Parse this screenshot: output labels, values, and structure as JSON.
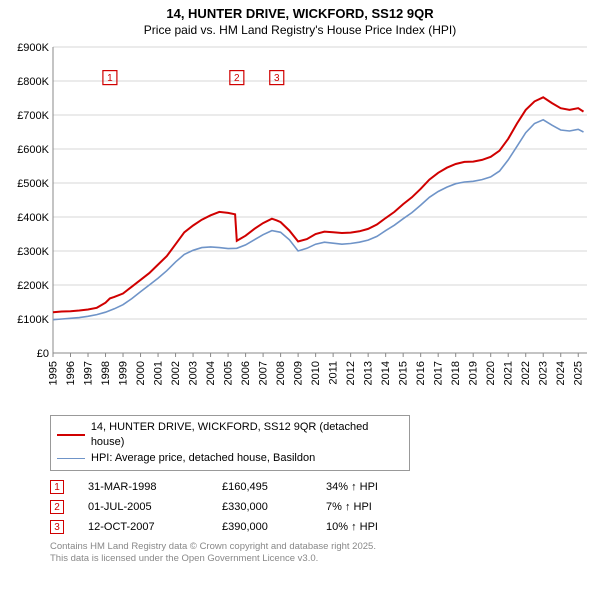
{
  "title_line1": "14, HUNTER DRIVE, WICKFORD, SS12 9QR",
  "title_line2": "Price paid vs. HM Land Registry's House Price Index (HPI)",
  "chart": {
    "type": "line",
    "background_color": "#ffffff",
    "grid_color": "#d7d7d7",
    "axis_color": "#888888",
    "tick_fontsize": 11,
    "x_years": [
      1995,
      1996,
      1997,
      1998,
      1999,
      2000,
      2001,
      2002,
      2003,
      2004,
      2005,
      2006,
      2007,
      2008,
      2009,
      2010,
      2011,
      2012,
      2013,
      2014,
      2015,
      2016,
      2017,
      2018,
      2019,
      2020,
      2021,
      2022,
      2023,
      2024,
      2025
    ],
    "xlim": [
      1995,
      2025.5
    ],
    "ylim": [
      0,
      900000
    ],
    "ytick_step": 100000,
    "ytick_labels": [
      "£0",
      "£100K",
      "£200K",
      "£300K",
      "£400K",
      "£500K",
      "£600K",
      "£700K",
      "£800K",
      "£900K"
    ],
    "series": [
      {
        "name": "price_paid",
        "label": "14, HUNTER DRIVE, WICKFORD, SS12 9QR (detached house)",
        "color": "#d00000",
        "line_width": 2,
        "points": [
          [
            1995.0,
            120000
          ],
          [
            1995.5,
            122000
          ],
          [
            1996.0,
            123000
          ],
          [
            1996.5,
            125000
          ],
          [
            1997.0,
            128000
          ],
          [
            1997.5,
            133000
          ],
          [
            1998.0,
            148000
          ],
          [
            1998.25,
            160495
          ],
          [
            1998.5,
            165000
          ],
          [
            1999.0,
            175000
          ],
          [
            1999.5,
            195000
          ],
          [
            2000.0,
            215000
          ],
          [
            2000.5,
            235000
          ],
          [
            2001.0,
            260000
          ],
          [
            2001.5,
            285000
          ],
          [
            2002.0,
            320000
          ],
          [
            2002.5,
            355000
          ],
          [
            2003.0,
            375000
          ],
          [
            2003.5,
            392000
          ],
          [
            2004.0,
            405000
          ],
          [
            2004.5,
            415000
          ],
          [
            2005.0,
            412000
          ],
          [
            2005.4,
            408000
          ],
          [
            2005.5,
            330000
          ],
          [
            2006.0,
            345000
          ],
          [
            2006.5,
            365000
          ],
          [
            2007.0,
            382000
          ],
          [
            2007.5,
            395000
          ],
          [
            2007.78,
            390000
          ],
          [
            2008.0,
            385000
          ],
          [
            2008.5,
            360000
          ],
          [
            2009.0,
            328000
          ],
          [
            2009.5,
            335000
          ],
          [
            2010.0,
            350000
          ],
          [
            2010.5,
            357000
          ],
          [
            2011.0,
            355000
          ],
          [
            2011.5,
            353000
          ],
          [
            2012.0,
            354000
          ],
          [
            2012.5,
            358000
          ],
          [
            2013.0,
            365000
          ],
          [
            2013.5,
            378000
          ],
          [
            2014.0,
            397000
          ],
          [
            2014.5,
            415000
          ],
          [
            2015.0,
            438000
          ],
          [
            2015.5,
            458000
          ],
          [
            2016.0,
            483000
          ],
          [
            2016.5,
            510000
          ],
          [
            2017.0,
            530000
          ],
          [
            2017.5,
            545000
          ],
          [
            2018.0,
            556000
          ],
          [
            2018.5,
            562000
          ],
          [
            2019.0,
            563000
          ],
          [
            2019.5,
            568000
          ],
          [
            2020.0,
            577000
          ],
          [
            2020.5,
            595000
          ],
          [
            2021.0,
            630000
          ],
          [
            2021.5,
            675000
          ],
          [
            2022.0,
            715000
          ],
          [
            2022.5,
            740000
          ],
          [
            2023.0,
            752000
          ],
          [
            2023.5,
            735000
          ],
          [
            2024.0,
            720000
          ],
          [
            2024.5,
            715000
          ],
          [
            2025.0,
            720000
          ],
          [
            2025.3,
            710000
          ]
        ]
      },
      {
        "name": "hpi",
        "label": "HPI: Average price, detached house, Basildon",
        "color": "#6f94c8",
        "line_width": 1.6,
        "points": [
          [
            1995.0,
            98000
          ],
          [
            1995.5,
            100000
          ],
          [
            1996.0,
            102000
          ],
          [
            1996.5,
            104000
          ],
          [
            1997.0,
            108000
          ],
          [
            1997.5,
            113000
          ],
          [
            1998.0,
            120000
          ],
          [
            1998.5,
            130000
          ],
          [
            1999.0,
            142000
          ],
          [
            1999.5,
            160000
          ],
          [
            2000.0,
            180000
          ],
          [
            2000.5,
            200000
          ],
          [
            2001.0,
            220000
          ],
          [
            2001.5,
            242000
          ],
          [
            2002.0,
            268000
          ],
          [
            2002.5,
            290000
          ],
          [
            2003.0,
            302000
          ],
          [
            2003.5,
            310000
          ],
          [
            2004.0,
            312000
          ],
          [
            2004.5,
            310000
          ],
          [
            2005.0,
            307000
          ],
          [
            2005.5,
            308000
          ],
          [
            2006.0,
            318000
          ],
          [
            2006.5,
            333000
          ],
          [
            2007.0,
            348000
          ],
          [
            2007.5,
            360000
          ],
          [
            2008.0,
            355000
          ],
          [
            2008.5,
            333000
          ],
          [
            2009.0,
            300000
          ],
          [
            2009.5,
            308000
          ],
          [
            2010.0,
            320000
          ],
          [
            2010.5,
            326000
          ],
          [
            2011.0,
            323000
          ],
          [
            2011.5,
            320000
          ],
          [
            2012.0,
            322000
          ],
          [
            2012.5,
            326000
          ],
          [
            2013.0,
            332000
          ],
          [
            2013.5,
            343000
          ],
          [
            2014.0,
            360000
          ],
          [
            2014.5,
            376000
          ],
          [
            2015.0,
            395000
          ],
          [
            2015.5,
            413000
          ],
          [
            2016.0,
            435000
          ],
          [
            2016.5,
            458000
          ],
          [
            2017.0,
            475000
          ],
          [
            2017.5,
            488000
          ],
          [
            2018.0,
            498000
          ],
          [
            2018.5,
            503000
          ],
          [
            2019.0,
            505000
          ],
          [
            2019.5,
            510000
          ],
          [
            2020.0,
            518000
          ],
          [
            2020.5,
            535000
          ],
          [
            2021.0,
            568000
          ],
          [
            2021.5,
            608000
          ],
          [
            2022.0,
            648000
          ],
          [
            2022.5,
            675000
          ],
          [
            2023.0,
            686000
          ],
          [
            2023.5,
            670000
          ],
          [
            2024.0,
            656000
          ],
          [
            2024.5,
            653000
          ],
          [
            2025.0,
            658000
          ],
          [
            2025.3,
            650000
          ]
        ]
      }
    ],
    "sale_markers": [
      {
        "id": "1",
        "x": 1998.25,
        "date": "31-MAR-1998",
        "price": "£160,495",
        "delta": "34% ↑ HPI"
      },
      {
        "id": "2",
        "x": 2005.5,
        "date": "01-JUL-2005",
        "price": "£330,000",
        "delta": "7% ↑ HPI"
      },
      {
        "id": "3",
        "x": 2007.78,
        "date": "12-OCT-2007",
        "price": "£390,000",
        "delta": "10% ↑ HPI"
      }
    ],
    "marker_box_color": "#d00000",
    "marker_y_top": 810000
  },
  "legend": {
    "border_color": "#999999"
  },
  "footnote_line1": "Contains HM Land Registry data © Crown copyright and database right 2025.",
  "footnote_line2": "This data is licensed under the Open Government Licence v3.0."
}
